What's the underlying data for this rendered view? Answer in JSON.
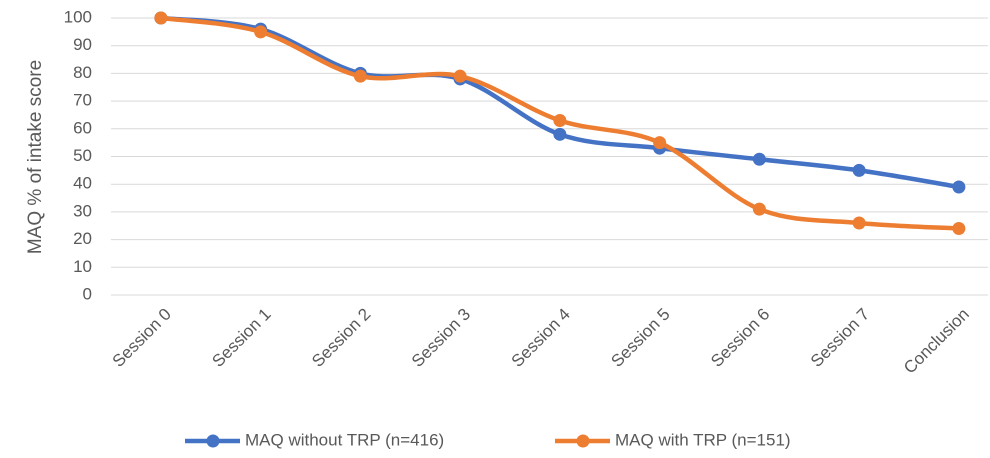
{
  "chart_data": {
    "type": "line",
    "y_label": "MAQ % of intake score",
    "categories": [
      "Session 0",
      "Session 1",
      "Session 2",
      "Session 3",
      "Session 4",
      "Session 5",
      "Session 6",
      "Session 7",
      "Conclusion"
    ],
    "series": [
      {
        "name": "MAQ without TRP (n=416)",
        "color": "#4472c4",
        "values": [
          100,
          96,
          80,
          78,
          58,
          53,
          49,
          45,
          39
        ]
      },
      {
        "name": "MAQ with TRP (n=151)",
        "color": "#ed7d31",
        "values": [
          100,
          95,
          79,
          79,
          63,
          55,
          31,
          26,
          24
        ]
      }
    ],
    "ylim": [
      0,
      100
    ],
    "yticks": [
      0,
      10,
      20,
      30,
      40,
      50,
      60,
      70,
      80,
      90,
      100
    ],
    "grid": true,
    "smooth": true,
    "markers": true,
    "legend": "bottom"
  }
}
